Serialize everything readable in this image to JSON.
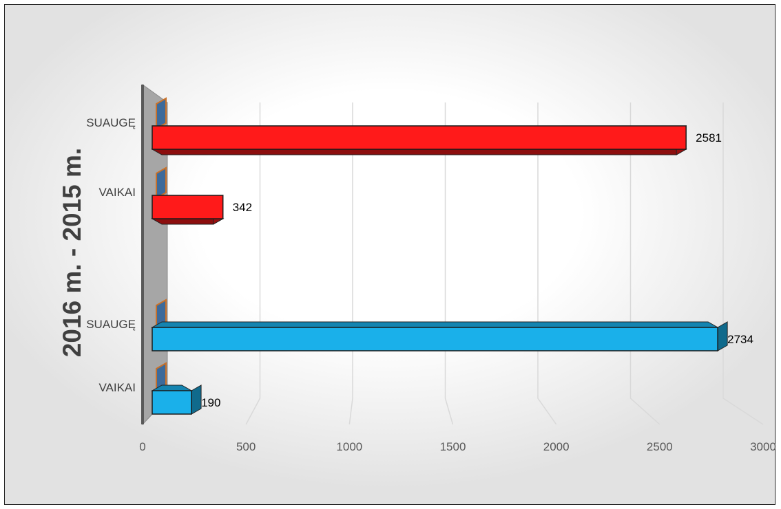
{
  "chart_data": {
    "type": "bar",
    "orientation": "horizontal",
    "title": "",
    "ylabel": "2016 m.   -   2015 m.",
    "xlabel": "",
    "xlim": [
      0,
      3000
    ],
    "x_ticks": [
      0,
      500,
      1000,
      1500,
      2000,
      2500,
      3000
    ],
    "grid": true,
    "legend": "none",
    "groups": [
      {
        "name": "2015 m.",
        "color": "#ff1a1a",
        "bars": [
          {
            "category": "SUAUGĘ",
            "value": 2581
          },
          {
            "category": "VAIKAI",
            "value": 342
          }
        ]
      },
      {
        "name": "2016 m.",
        "color": "#1ab0ea",
        "bars": [
          {
            "category": "SUAUGĘ",
            "value": 2734
          },
          {
            "category": "VAIKAI",
            "value": 190
          }
        ]
      }
    ]
  }
}
